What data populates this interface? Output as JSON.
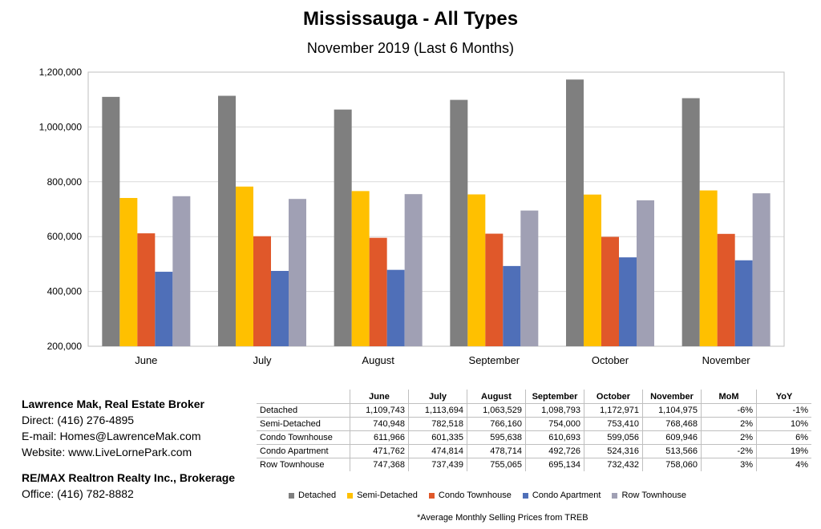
{
  "chart_data": {
    "type": "bar",
    "title": "Mississauga - All Types",
    "subtitle": "November 2019 (Last 6 Months)",
    "categories": [
      "June",
      "July",
      "August",
      "September",
      "October",
      "November"
    ],
    "ylim": [
      200000,
      1200000
    ],
    "yticks": [
      200000,
      400000,
      600000,
      800000,
      1000000,
      1200000
    ],
    "ytick_labels": [
      "200,000",
      "400,000",
      "600,000",
      "800,000",
      "1,000,000",
      "1,200,000"
    ],
    "grid": true,
    "legend_position": "bottom",
    "series": [
      {
        "name": "Detached",
        "color": "#7f7f7f",
        "values": [
          1109743,
          1113694,
          1063529,
          1098793,
          1172971,
          1104975
        ]
      },
      {
        "name": "Semi-Detached",
        "color": "#ffc000",
        "values": [
          740948,
          782518,
          766160,
          754000,
          753410,
          768468
        ]
      },
      {
        "name": "Condo Townhouse",
        "color": "#e0582a",
        "values": [
          611966,
          601335,
          595638,
          610693,
          599056,
          609946
        ]
      },
      {
        "name": "Condo Apartment",
        "color": "#4f6fb8",
        "values": [
          471762,
          474814,
          478714,
          492726,
          524316,
          513566
        ]
      },
      {
        "name": "Row Townhouse",
        "color": "#a0a0b4",
        "values": [
          747368,
          737439,
          755065,
          695134,
          732432,
          758060
        ]
      }
    ]
  },
  "table": {
    "headers": [
      "",
      "June",
      "July",
      "August",
      "September",
      "October",
      "November",
      "MoM",
      "YoY"
    ],
    "rows": [
      [
        "Detached",
        "1,109,743",
        "1,113,694",
        "1,063,529",
        "1,098,793",
        "1,172,971",
        "1,104,975",
        "-6%",
        "-1%"
      ],
      [
        "Semi-Detached",
        "740,948",
        "782,518",
        "766,160",
        "754,000",
        "753,410",
        "768,468",
        "2%",
        "10%"
      ],
      [
        "Condo Townhouse",
        "611,966",
        "601,335",
        "595,638",
        "610,693",
        "599,056",
        "609,946",
        "2%",
        "6%"
      ],
      [
        "Condo Apartment",
        "471,762",
        "474,814",
        "478,714",
        "492,726",
        "524,316",
        "513,566",
        "-2%",
        "19%"
      ],
      [
        "Row Townhouse",
        "747,368",
        "737,439",
        "755,065",
        "695,134",
        "732,432",
        "758,060",
        "3%",
        "4%"
      ]
    ]
  },
  "contact": {
    "name": "Lawrence Mak, Real Estate Broker",
    "direct": "Direct:  (416) 276-4895",
    "email": "E-mail:  Homes@LawrenceMak.com",
    "website": "Website: www.LiveLornePark.com",
    "brokerage": "RE/MAX Realtron Realty Inc., Brokerage",
    "office": "Office: (416) 782-8882"
  },
  "footnote": "*Average Monthly Selling Prices  from TREB"
}
